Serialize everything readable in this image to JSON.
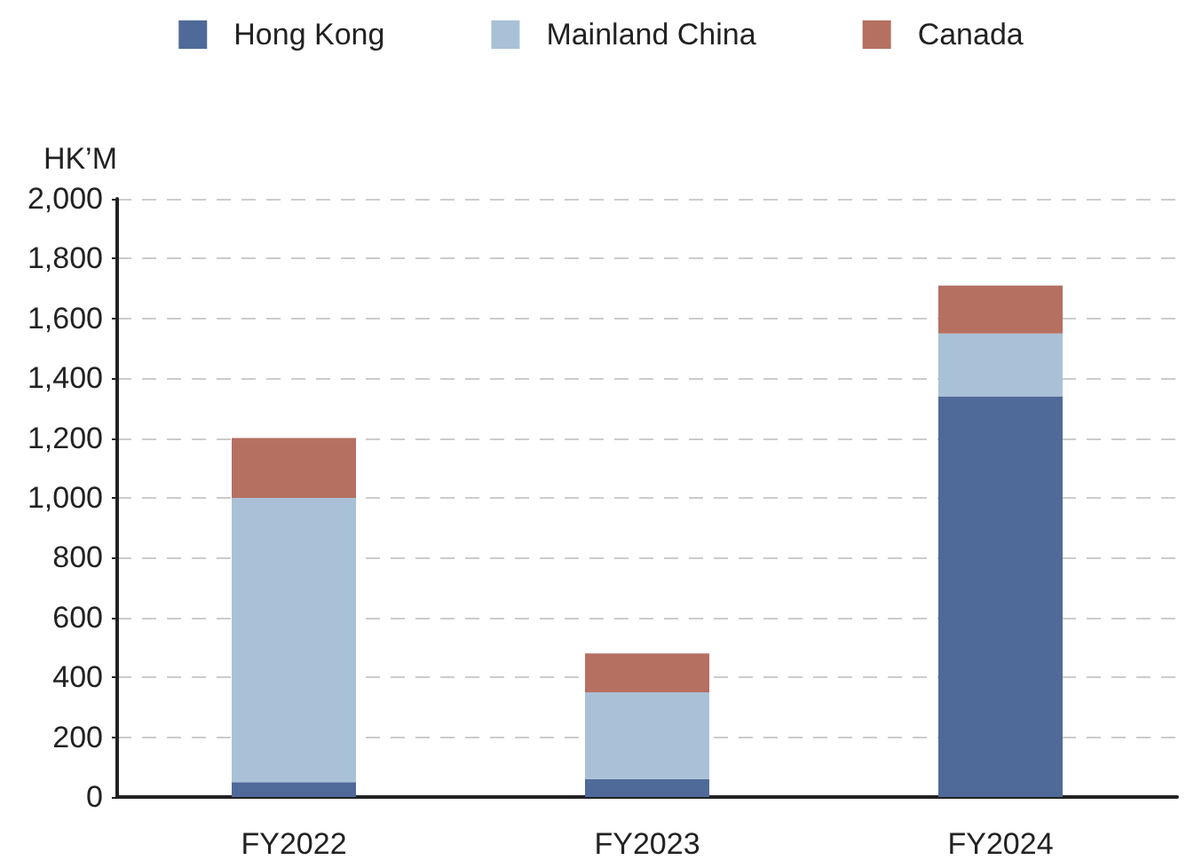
{
  "chart_data": {
    "type": "bar",
    "stacked": true,
    "ylabel": "HK’M",
    "categories": [
      "FY2022",
      "FY2023",
      "FY2024"
    ],
    "series": [
      {
        "name": "Hong Kong",
        "color": "#4f6a98",
        "values": [
          50,
          60,
          1340
        ]
      },
      {
        "name": "Mainland China",
        "color": "#a9c1d6",
        "values": [
          950,
          290,
          210
        ]
      },
      {
        "name": "Canada",
        "color": "#b57061",
        "values": [
          200,
          130,
          160
        ]
      }
    ],
    "ylim": [
      0,
      2000
    ],
    "yticks": [
      {
        "value": 0,
        "label": "0"
      },
      {
        "value": 200,
        "label": "200"
      },
      {
        "value": 400,
        "label": "400"
      },
      {
        "value": 600,
        "label": "600"
      },
      {
        "value": 800,
        "label": "800"
      },
      {
        "value": 1000,
        "label": "1,000"
      },
      {
        "value": 1200,
        "label": "1,200"
      },
      {
        "value": 1400,
        "label": "1,400"
      },
      {
        "value": 1600,
        "label": "1,600"
      },
      {
        "value": 1800,
        "label": "1,800"
      },
      {
        "value": 2000,
        "label": "2,000"
      }
    ],
    "grid": "y",
    "legend": "top"
  }
}
